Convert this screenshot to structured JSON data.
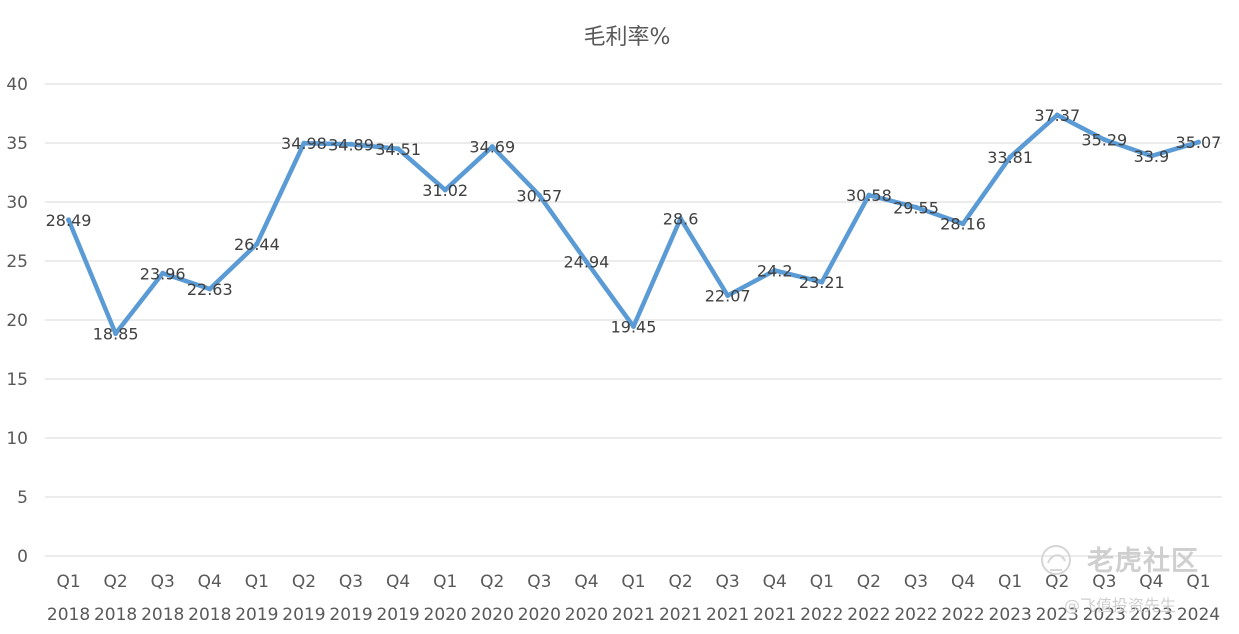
{
  "chart_data": {
    "type": "line",
    "title": "毛利率%",
    "xlabel": "",
    "ylabel": "",
    "ylim": [
      0,
      40
    ],
    "y_ticks": [
      "0",
      "5",
      "10",
      "15",
      "20",
      "25",
      "30",
      "35",
      "40"
    ],
    "categories": [
      {
        "quarter": "Q1",
        "year": "2018"
      },
      {
        "quarter": "Q2",
        "year": "2018"
      },
      {
        "quarter": "Q3",
        "year": "2018"
      },
      {
        "quarter": "Q4",
        "year": "2018"
      },
      {
        "quarter": "Q1",
        "year": "2019"
      },
      {
        "quarter": "Q2",
        "year": "2019"
      },
      {
        "quarter": "Q3",
        "year": "2019"
      },
      {
        "quarter": "Q4",
        "year": "2019"
      },
      {
        "quarter": "Q1",
        "year": "2020"
      },
      {
        "quarter": "Q2",
        "year": "2020"
      },
      {
        "quarter": "Q3",
        "year": "2020"
      },
      {
        "quarter": "Q4",
        "year": "2020"
      },
      {
        "quarter": "Q1",
        "year": "2021"
      },
      {
        "quarter": "Q2",
        "year": "2021"
      },
      {
        "quarter": "Q3",
        "year": "2021"
      },
      {
        "quarter": "Q4",
        "year": "2021"
      },
      {
        "quarter": "Q1",
        "year": "2022"
      },
      {
        "quarter": "Q2",
        "year": "2022"
      },
      {
        "quarter": "Q3",
        "year": "2022"
      },
      {
        "quarter": "Q4",
        "year": "2022"
      },
      {
        "quarter": "Q1",
        "year": "2023"
      },
      {
        "quarter": "Q2",
        "year": "2023"
      },
      {
        "quarter": "Q3",
        "year": "2023"
      },
      {
        "quarter": "Q4",
        "year": "2023"
      },
      {
        "quarter": "Q1",
        "year": "2024"
      }
    ],
    "series": [
      {
        "color": "#5b9bd5",
        "values": [
          28.49,
          18.85,
          23.96,
          22.63,
          26.44,
          34.98,
          34.89,
          34.51,
          31.02,
          34.69,
          30.57,
          24.94,
          19.45,
          28.6,
          22.07,
          24.2,
          23.21,
          30.58,
          29.55,
          28.16,
          33.81,
          37.37,
          35.29,
          33.9,
          35.07
        ],
        "labels": [
          "28.49",
          "18.85",
          "23.96",
          "22.63",
          "26.44",
          "34.98",
          "34.89",
          "34.51",
          "31.02",
          "34.69",
          "30.57",
          "24.94",
          "19.45",
          "28.6",
          "22.07",
          "24.2",
          "23.21",
          "30.58",
          "29.55",
          "28.16",
          "33.81",
          "37.37",
          "35.29",
          "33.9",
          "35.07"
        ]
      }
    ],
    "grid": true,
    "legend": "none"
  },
  "watermark": {
    "main": "老虎社区",
    "sub": "@飞值投资先生"
  },
  "colors": {
    "line": "#5b9bd5",
    "grid": "#d9d9d9",
    "text": "#595959",
    "watermark": "#cfcfcf"
  }
}
